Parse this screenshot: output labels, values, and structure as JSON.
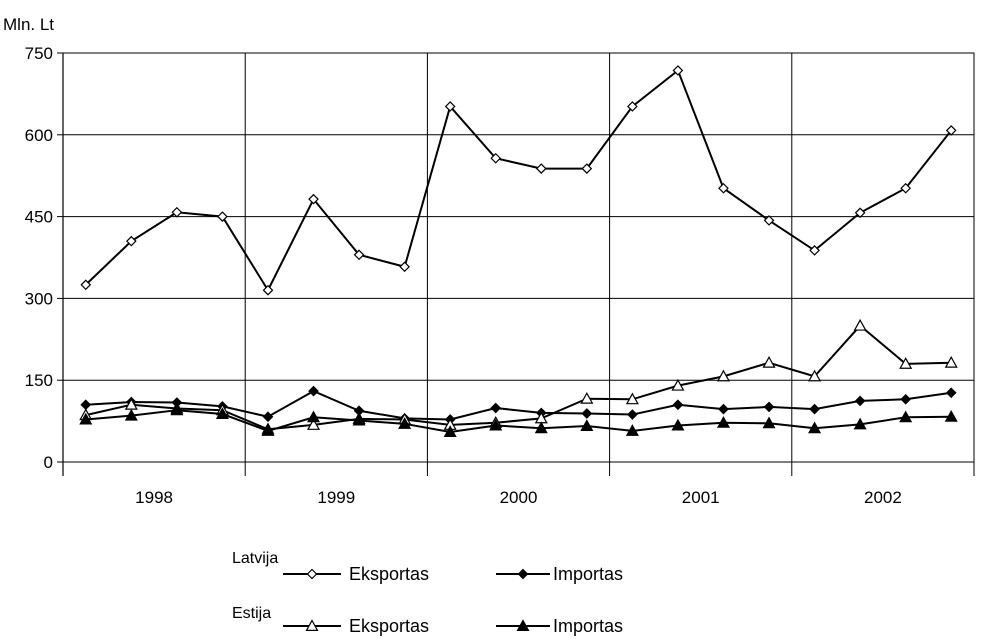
{
  "chart_data": {
    "type": "line",
    "y_unit_label": "Mln. Lt",
    "ylim": [
      0,
      750
    ],
    "yticks": [
      "750",
      "600",
      "450",
      "300",
      "150",
      "0"
    ],
    "x_year_labels": [
      "1998",
      "1999",
      "2000",
      "2001",
      "2002"
    ],
    "quarters_per_year": 4,
    "grid": true,
    "legend_position": "bottom",
    "legend_groups": [
      "Latvija",
      "Estija"
    ],
    "series": [
      {
        "group": "Latvija",
        "name": "Eksportas",
        "marker": "diamond-open",
        "values": [
          325,
          405,
          458,
          450,
          315,
          482,
          380,
          358,
          652,
          557,
          538,
          538,
          652,
          718,
          502,
          443,
          388,
          457,
          502,
          608
        ]
      },
      {
        "group": "Latvija",
        "name": "Importas",
        "marker": "diamond-filled",
        "values": [
          105,
          110,
          109,
          102,
          83,
          130,
          94,
          80,
          78,
          99,
          90,
          89,
          87,
          105,
          97,
          101,
          97,
          112,
          115,
          127
        ]
      },
      {
        "group": "Estija",
        "name": "Eksportas",
        "marker": "triangle-open",
        "values": [
          86,
          105,
          98,
          95,
          60,
          68,
          79,
          78,
          68,
          72,
          80,
          116,
          115,
          140,
          157,
          182,
          157,
          250,
          180,
          182
        ]
      },
      {
        "group": "Estija",
        "name": "Importas",
        "marker": "triangle-filled",
        "values": [
          78,
          85,
          95,
          88,
          57,
          82,
          76,
          70,
          55,
          67,
          62,
          66,
          57,
          67,
          72,
          71,
          62,
          69,
          82,
          83
        ]
      }
    ]
  }
}
